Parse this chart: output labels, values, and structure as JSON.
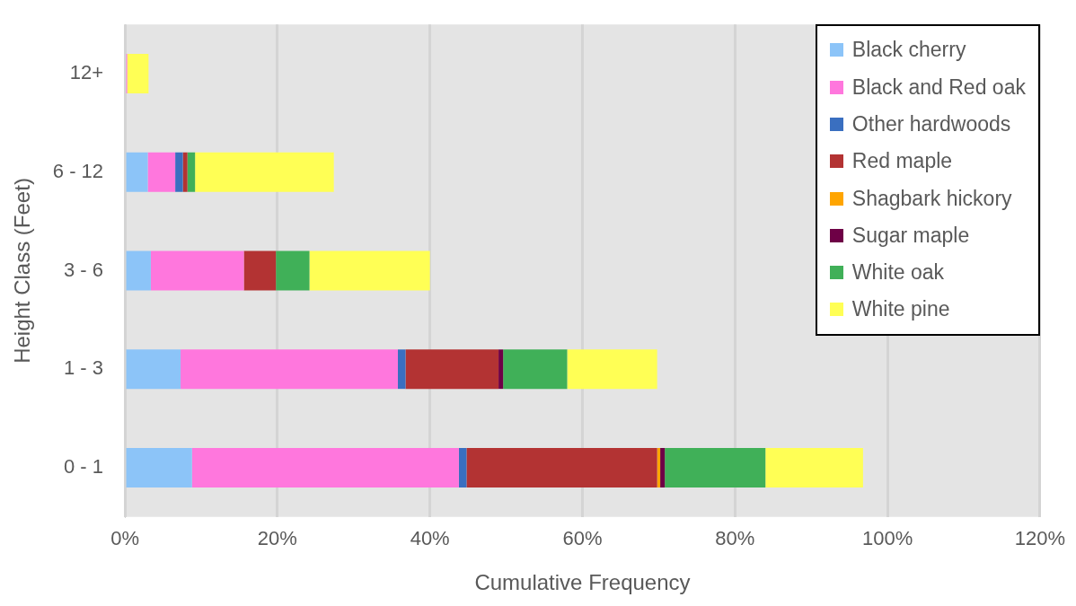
{
  "chart_data": {
    "type": "bar",
    "orientation": "horizontal",
    "stacked": true,
    "xlabel": "Cumulative Frequency",
    "ylabel": "Height Class (Feet)",
    "categories": [
      "12+",
      "6 - 12",
      "3 - 6",
      "1 - 3",
      "0 - 1"
    ],
    "series": [
      {
        "name": "Black cherry",
        "color": "#8cc4f8",
        "values": [
          0,
          3.0,
          3.4,
          7.3,
          8.8
        ]
      },
      {
        "name": "Black and Red oak",
        "color": "#ff77dd",
        "values": [
          0.3,
          3.6,
          12.2,
          28.5,
          35.0
        ]
      },
      {
        "name": "Other hardwoods",
        "color": "#3a6fc0",
        "values": [
          0,
          1.0,
          0,
          1.0,
          1.0
        ]
      },
      {
        "name": "Red maple",
        "color": "#b33333",
        "values": [
          0,
          0.6,
          4.2,
          12.2,
          25.0
        ]
      },
      {
        "name": "Shagbark hickory",
        "color": "#ffa500",
        "values": [
          0,
          0,
          0,
          0,
          0.4
        ]
      },
      {
        "name": "Sugar maple",
        "color": "#6e0046",
        "values": [
          0,
          0,
          0,
          0.6,
          0.6
        ]
      },
      {
        "name": "White oak",
        "color": "#40b058",
        "values": [
          0,
          1.0,
          4.4,
          8.4,
          13.2
        ]
      },
      {
        "name": "White pine",
        "color": "#ffff55",
        "values": [
          2.8,
          18.2,
          15.8,
          11.8,
          12.8
        ]
      }
    ],
    "xlim": [
      0,
      120
    ],
    "xticks": [
      {
        "value": 0,
        "label": "0%"
      },
      {
        "value": 20,
        "label": "20%"
      },
      {
        "value": 40,
        "label": "40%"
      },
      {
        "value": 60,
        "label": "60%"
      },
      {
        "value": 80,
        "label": "80%"
      },
      {
        "value": 100,
        "label": "100%"
      },
      {
        "value": 120,
        "label": "120%"
      }
    ],
    "grid": "x",
    "legend": "top right"
  }
}
